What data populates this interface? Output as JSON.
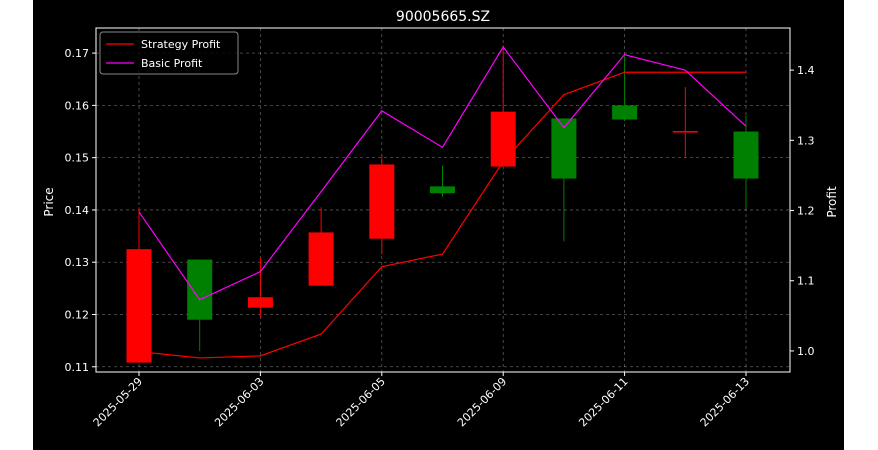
{
  "chart_data": {
    "type": "candlestick",
    "title": "90005665.SZ",
    "xlabel": "",
    "ylabel": "Price",
    "y2label": "Profit",
    "grid": true,
    "legend_position": "top-left",
    "ylim": [
      0.109,
      0.1748
    ],
    "y2lim": [
      0.97,
      1.46
    ],
    "yticks": [
      "0.11",
      "0.12",
      "0.13",
      "0.14",
      "0.15",
      "0.16",
      "0.17"
    ],
    "y2ticks": [
      "1.0",
      "1.1",
      "1.2",
      "1.3",
      "1.4"
    ],
    "xtick_labels": [
      "2025-05-29",
      "2025-06-03",
      "2025-06-05",
      "2025-06-09",
      "2025-06-11",
      "2025-06-13"
    ],
    "xtick_indices": [
      0,
      2,
      4,
      6,
      8,
      10
    ],
    "candles": [
      {
        "open": 0.1108,
        "high": 0.1405,
        "low": 0.1108,
        "close": 0.1325
      },
      {
        "open": 0.1305,
        "high": 0.1305,
        "low": 0.113,
        "close": 0.119
      },
      {
        "open": 0.1213,
        "high": 0.131,
        "low": 0.1195,
        "close": 0.1233
      },
      {
        "open": 0.1255,
        "high": 0.1405,
        "low": 0.1255,
        "close": 0.1357
      },
      {
        "open": 0.1345,
        "high": 0.1505,
        "low": 0.1315,
        "close": 0.1487
      },
      {
        "open": 0.1445,
        "high": 0.1485,
        "low": 0.1425,
        "close": 0.1432
      },
      {
        "open": 0.1483,
        "high": 0.1715,
        "low": 0.1483,
        "close": 0.1588
      },
      {
        "open": 0.1575,
        "high": 0.1575,
        "low": 0.134,
        "close": 0.146
      },
      {
        "open": 0.16,
        "high": 0.1695,
        "low": 0.157,
        "close": 0.1573
      },
      {
        "open": 0.1548,
        "high": 0.1635,
        "low": 0.15,
        "close": 0.1551
      },
      {
        "open": 0.155,
        "high": 0.158,
        "low": 0.1402,
        "close": 0.146
      }
    ],
    "up_color": "#ff0000",
    "down_color": "#008000",
    "series": [
      {
        "name": "Strategy Profit",
        "color": "#ff0000",
        "axis": "right",
        "values": [
          0.999,
          0.99,
          0.993,
          1.024,
          1.12,
          1.138,
          1.27,
          1.365,
          1.397,
          1.397,
          1.397
        ]
      },
      {
        "name": "Basic Profit",
        "color": "#ff00ff",
        "axis": "right",
        "values": [
          1.198,
          1.073,
          1.113,
          1.227,
          1.342,
          1.29,
          1.433,
          1.318,
          1.422,
          1.4,
          1.32
        ]
      }
    ]
  }
}
